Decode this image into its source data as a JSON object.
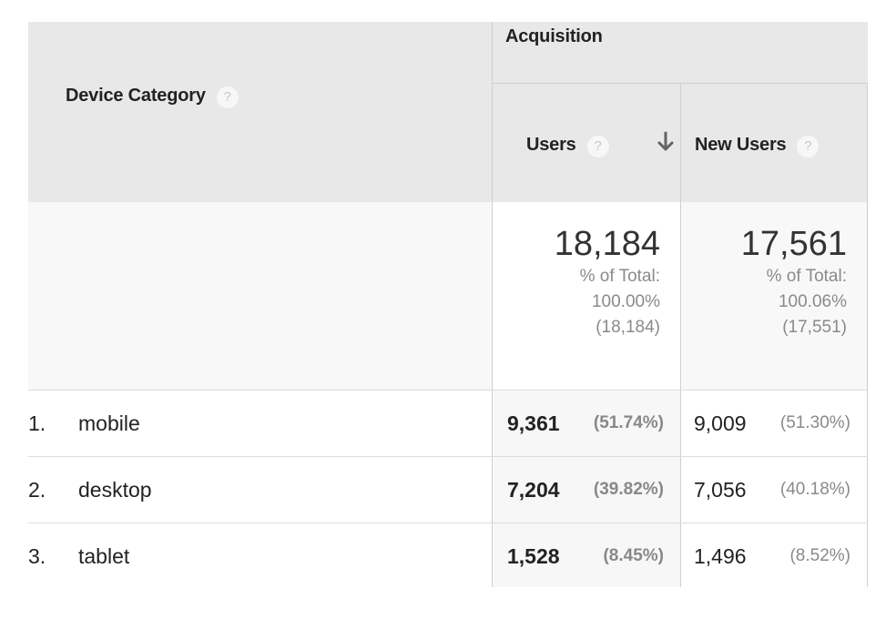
{
  "header": {
    "dimension_label": "Device Category",
    "group_label": "Acquisition",
    "columns": [
      {
        "label": "Users",
        "sorted": "descending",
        "sort_icon": "arrow-down-icon"
      },
      {
        "label": "New Users"
      }
    ],
    "help_glyph": "?"
  },
  "totals": {
    "users": {
      "value": "18,184",
      "pct_label": "% of Total:",
      "pct_value": "100.00%",
      "of_total": "(18,184)"
    },
    "new_users": {
      "value": "17,561",
      "pct_label": "% of Total:",
      "pct_value": "100.06%",
      "of_total": "(17,551)"
    }
  },
  "rows": [
    {
      "index": "1.",
      "name": "mobile",
      "users": "9,361",
      "users_pct": "(51.74%)",
      "new_users": "9,009",
      "new_users_pct": "(51.30%)"
    },
    {
      "index": "2.",
      "name": "desktop",
      "users": "7,204",
      "users_pct": "(39.82%)",
      "new_users": "7,056",
      "new_users_pct": "(40.18%)"
    },
    {
      "index": "3.",
      "name": "tablet",
      "users": "1,528",
      "users_pct": "(8.45%)",
      "new_users": "1,496",
      "new_users_pct": "(8.52%)"
    }
  ],
  "colors": {
    "header_bg": "#e8e8e8",
    "totals_bg": "#f8f8f8",
    "sorted_column_bg": "#f7f7f7",
    "border": "#cfcfcf",
    "muted_text": "#8a8a8a"
  }
}
